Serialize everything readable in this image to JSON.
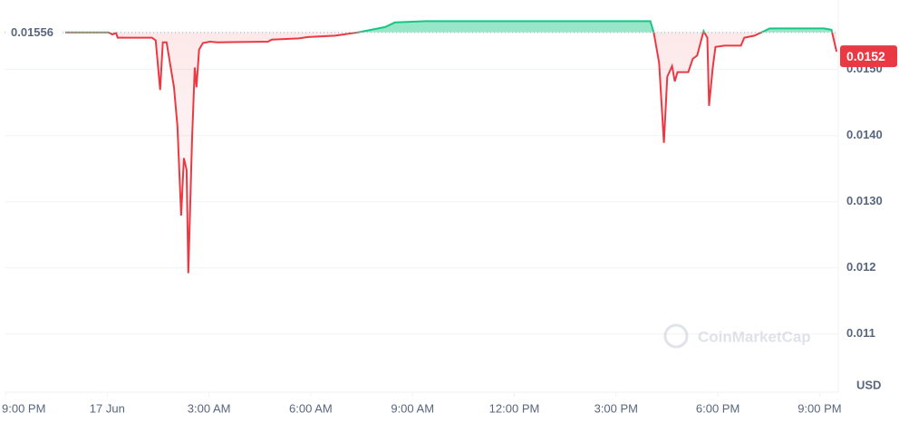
{
  "chart_data": {
    "type": "line",
    "x": [
      1.76,
      3.04,
      3.15,
      3.26,
      3.31,
      4.32,
      4.43,
      4.56,
      4.64,
      4.75,
      4.97,
      5.07,
      5.18,
      5.26,
      5.34,
      5.39,
      5.5,
      5.58,
      5.63,
      5.71,
      5.82,
      6.03,
      6.25,
      7.74,
      7.85,
      8.65,
      8.92,
      9.72,
      9.98,
      10.38,
      10.78,
      11.19,
      11.48,
      12.39,
      15.86,
      17.19,
      19.01,
      19.11,
      19.27,
      19.41,
      19.51,
      19.65,
      19.73,
      19.81,
      20.13,
      20.26,
      20.39,
      20.58,
      20.69,
      20.74,
      20.85,
      20.93,
      21.2,
      21.68,
      21.78,
      22.08,
      22.53,
      24.13,
      24.35,
      24.5
    ],
    "values": [
      0.01556,
      0.01556,
      0.01553,
      0.01555,
      0.01548,
      0.01548,
      0.01544,
      0.01469,
      0.01541,
      0.01541,
      0.01473,
      0.01414,
      0.01279,
      0.01366,
      0.01348,
      0.01192,
      0.01393,
      0.01503,
      0.01473,
      0.0153,
      0.0154,
      0.01542,
      0.01541,
      0.01542,
      0.01545,
      0.01547,
      0.01549,
      0.01551,
      0.01553,
      0.01556,
      0.0156,
      0.01564,
      0.01571,
      0.01573,
      0.01573,
      0.01573,
      0.01573,
      0.01556,
      0.0151,
      0.01389,
      0.01489,
      0.01505,
      0.01482,
      0.01496,
      0.01496,
      0.01516,
      0.01521,
      0.01558,
      0.01548,
      0.01445,
      0.01503,
      0.01534,
      0.01536,
      0.01536,
      0.01548,
      0.01551,
      0.01562,
      0.01562,
      0.0156,
      0.01527
    ],
    "baseline": 0.01556,
    "current_price": 0.0152,
    "up_color": "#16c784",
    "down_color": "#ea3943",
    "xlim": [
      0,
      24.55
    ],
    "xticks": [
      {
        "value": 0,
        "label": "9:00 PM"
      },
      {
        "value": 3,
        "label": "17 Jun"
      },
      {
        "value": 6,
        "label": "3:00 AM"
      },
      {
        "value": 9,
        "label": "6:00 AM"
      },
      {
        "value": 12,
        "label": "9:00 AM"
      },
      {
        "value": 15,
        "label": "12:00 PM"
      },
      {
        "value": 18,
        "label": "3:00 PM"
      },
      {
        "value": 21,
        "label": "6:00 PM"
      },
      {
        "value": 24,
        "label": "9:00 PM"
      }
    ],
    "ylim": [
      0.01012,
      0.01605
    ],
    "yticks": [
      {
        "value": 0.015,
        "label": "0.0150"
      },
      {
        "value": 0.014,
        "label": "0.0140"
      },
      {
        "value": 0.013,
        "label": "0.0130"
      },
      0.012,
      0.011
    ],
    "grid": true,
    "y_unit": "USD",
    "watermark": "CoinMarketCap"
  }
}
